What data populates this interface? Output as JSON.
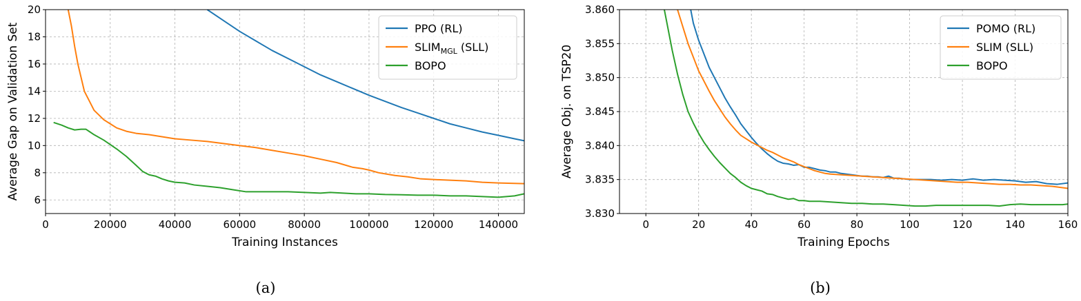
{
  "chart_data": [
    {
      "type": "line",
      "caption": "(a)",
      "xlabel": "Training Instances",
      "ylabel": "Average Gap on Validation Set",
      "xlim": [
        0,
        148000
      ],
      "ylim": [
        5,
        20
      ],
      "xticks": [
        0,
        20000,
        40000,
        60000,
        80000,
        100000,
        120000,
        140000
      ],
      "xtick_labels": [
        "0",
        "20000",
        "40000",
        "60000",
        "80000",
        "100000",
        "120000",
        "140000"
      ],
      "yticks": [
        6,
        8,
        10,
        12,
        14,
        16,
        18,
        20
      ],
      "ytick_labels": [
        "6",
        "8",
        "10",
        "12",
        "14",
        "16",
        "18",
        "20"
      ],
      "grid": true,
      "legend_position": "top-right",
      "series": [
        {
          "name": "PPO (RL)",
          "color": "#1f77b4",
          "x": [
            50000,
            55000,
            60000,
            65000,
            70000,
            75000,
            80000,
            85000,
            90000,
            95000,
            100000,
            105000,
            110000,
            115000,
            120000,
            125000,
            130000,
            135000,
            140000,
            145000,
            148000
          ],
          "y": [
            20.0,
            19.2,
            18.4,
            17.7,
            17.0,
            16.4,
            15.8,
            15.2,
            14.7,
            14.2,
            13.7,
            13.25,
            12.8,
            12.4,
            12.0,
            11.6,
            11.3,
            11.0,
            10.75,
            10.5,
            10.35
          ]
        },
        {
          "name_main": "SLIM",
          "name_sub": "MGL",
          "name_suffix": " (SLL)",
          "color": "#ff7f0e",
          "x": [
            7000,
            8000,
            9000,
            10000,
            12000,
            15000,
            18000,
            20000,
            22000,
            25000,
            28000,
            32000,
            36000,
            40000,
            45000,
            50000,
            55000,
            60000,
            65000,
            70000,
            75000,
            80000,
            85000,
            90000,
            95000,
            98000,
            100000,
            103000,
            108000,
            112000,
            116000,
            120000,
            125000,
            130000,
            135000,
            140000,
            145000,
            148000
          ],
          "y": [
            20.0,
            18.8,
            17.3,
            16.0,
            14.0,
            12.6,
            11.9,
            11.6,
            11.3,
            11.05,
            10.9,
            10.8,
            10.65,
            10.5,
            10.4,
            10.3,
            10.15,
            10.0,
            9.85,
            9.65,
            9.45,
            9.25,
            9.0,
            8.75,
            8.4,
            8.3,
            8.2,
            8.0,
            7.8,
            7.7,
            7.55,
            7.5,
            7.45,
            7.4,
            7.3,
            7.25,
            7.22,
            7.2
          ]
        },
        {
          "name": "BOPO",
          "color": "#2ca02c",
          "x": [
            2500,
            5000,
            7000,
            9000,
            11000,
            12500,
            15000,
            18000,
            22000,
            25000,
            28000,
            30000,
            32000,
            34000,
            36000,
            38000,
            40000,
            43000,
            46000,
            50000,
            54000,
            58000,
            62000,
            66000,
            70000,
            75000,
            80000,
            85000,
            88000,
            92000,
            96000,
            100000,
            105000,
            110000,
            115000,
            120000,
            125000,
            130000,
            135000,
            140000,
            145000,
            148000
          ],
          "y": [
            11.7,
            11.5,
            11.3,
            11.15,
            11.2,
            11.2,
            10.8,
            10.4,
            9.75,
            9.2,
            8.55,
            8.1,
            7.85,
            7.75,
            7.55,
            7.4,
            7.3,
            7.25,
            7.1,
            7.0,
            6.9,
            6.75,
            6.6,
            6.6,
            6.6,
            6.6,
            6.55,
            6.5,
            6.55,
            6.5,
            6.45,
            6.45,
            6.4,
            6.38,
            6.35,
            6.35,
            6.3,
            6.3,
            6.25,
            6.2,
            6.3,
            6.45
          ]
        }
      ]
    },
    {
      "type": "line",
      "caption": "(b)",
      "xlabel": "Training Epochs",
      "ylabel": "Average Obj. on TSP20",
      "xlim": [
        -10,
        160
      ],
      "ylim": [
        3.83,
        3.86
      ],
      "xticks": [
        0,
        20,
        40,
        60,
        80,
        100,
        120,
        140,
        160
      ],
      "xtick_labels": [
        "0",
        "20",
        "40",
        "60",
        "80",
        "100",
        "120",
        "140",
        "160"
      ],
      "yticks": [
        3.83,
        3.835,
        3.84,
        3.845,
        3.85,
        3.855,
        3.86
      ],
      "ytick_labels": [
        "3.830",
        "3.835",
        "3.840",
        "3.845",
        "3.850",
        "3.855",
        "3.860"
      ],
      "grid": true,
      "legend_position": "top-right",
      "series": [
        {
          "name": "POMO (RL)",
          "color": "#1f77b4",
          "x": [
            17,
            18,
            20,
            22,
            24,
            26,
            28,
            30,
            32,
            34,
            36,
            38,
            40,
            42,
            44,
            46,
            48,
            50,
            52,
            54,
            56,
            58,
            60,
            62,
            64,
            66,
            68,
            70,
            72,
            74,
            76,
            78,
            80,
            82,
            84,
            86,
            88,
            90,
            92,
            94,
            96,
            98,
            100,
            104,
            108,
            112,
            116,
            120,
            124,
            128,
            132,
            136,
            140,
            144,
            148,
            152,
            156,
            160
          ],
          "y": [
            3.86,
            3.858,
            3.8555,
            3.8535,
            3.8515,
            3.85,
            3.8485,
            3.847,
            3.8457,
            3.8445,
            3.8432,
            3.8422,
            3.8412,
            3.8403,
            3.8395,
            3.8388,
            3.8382,
            3.8377,
            3.8374,
            3.8373,
            3.8371,
            3.8372,
            3.8368,
            3.8368,
            3.8366,
            3.8364,
            3.8363,
            3.8361,
            3.8361,
            3.8359,
            3.8358,
            3.8357,
            3.8356,
            3.8355,
            3.8355,
            3.8354,
            3.8354,
            3.8353,
            3.8355,
            3.8352,
            3.8352,
            3.8351,
            3.835,
            3.835,
            3.835,
            3.8349,
            3.835,
            3.8349,
            3.8351,
            3.8349,
            3.835,
            3.8349,
            3.8348,
            3.8346,
            3.8347,
            3.8344,
            3.8343,
            3.8345
          ]
        },
        {
          "name": "SLIM  (SLL)",
          "color": "#ff7f0e",
          "x": [
            12,
            14,
            16,
            18,
            20,
            22,
            24,
            26,
            28,
            30,
            32,
            34,
            36,
            38,
            40,
            42,
            44,
            46,
            48,
            50,
            52,
            54,
            56,
            58,
            60,
            62,
            64,
            66,
            68,
            70,
            74,
            78,
            82,
            86,
            90,
            94,
            98,
            102,
            106,
            110,
            114,
            118,
            122,
            126,
            130,
            134,
            138,
            142,
            146,
            150,
            154,
            158,
            160
          ],
          "y": [
            3.86,
            3.8575,
            3.855,
            3.853,
            3.851,
            3.8495,
            3.848,
            3.8466,
            3.8454,
            3.8442,
            3.8432,
            3.8423,
            3.8415,
            3.841,
            3.8405,
            3.8401,
            3.8397,
            3.8393,
            3.839,
            3.8386,
            3.8382,
            3.8379,
            3.8376,
            3.8372,
            3.8369,
            3.8366,
            3.8363,
            3.8361,
            3.8359,
            3.8358,
            3.8357,
            3.8356,
            3.8355,
            3.8354,
            3.8353,
            3.8352,
            3.8351,
            3.835,
            3.8349,
            3.8348,
            3.8347,
            3.8346,
            3.8346,
            3.8345,
            3.8344,
            3.8343,
            3.8343,
            3.8342,
            3.8342,
            3.8341,
            3.834,
            3.8338,
            3.8337
          ]
        },
        {
          "name": "BOPO",
          "color": "#2ca02c",
          "x": [
            7,
            8,
            10,
            12,
            14,
            16,
            18,
            20,
            22,
            24,
            26,
            28,
            30,
            32,
            34,
            36,
            38,
            40,
            42,
            44,
            46,
            48,
            50,
            52,
            54,
            56,
            58,
            60,
            62,
            66,
            70,
            74,
            78,
            82,
            86,
            90,
            94,
            98,
            102,
            106,
            110,
            114,
            118,
            122,
            126,
            130,
            134,
            138,
            142,
            146,
            150,
            154,
            158,
            160
          ],
          "y": [
            3.86,
            3.858,
            3.854,
            3.8505,
            3.8475,
            3.845,
            3.8433,
            3.8418,
            3.8405,
            3.8394,
            3.8384,
            3.8375,
            3.8367,
            3.8359,
            3.8353,
            3.8346,
            3.8341,
            3.8337,
            3.8335,
            3.8333,
            3.8329,
            3.8328,
            3.8325,
            3.8323,
            3.8321,
            3.8322,
            3.8319,
            3.8319,
            3.8318,
            3.8318,
            3.8317,
            3.8316,
            3.8315,
            3.8315,
            3.8314,
            3.8314,
            3.8313,
            3.8312,
            3.8311,
            3.8311,
            3.8312,
            3.8312,
            3.8312,
            3.8312,
            3.8312,
            3.8312,
            3.8311,
            3.8313,
            3.8314,
            3.8313,
            3.8313,
            3.8313,
            3.8313,
            3.8314
          ]
        }
      ]
    }
  ]
}
